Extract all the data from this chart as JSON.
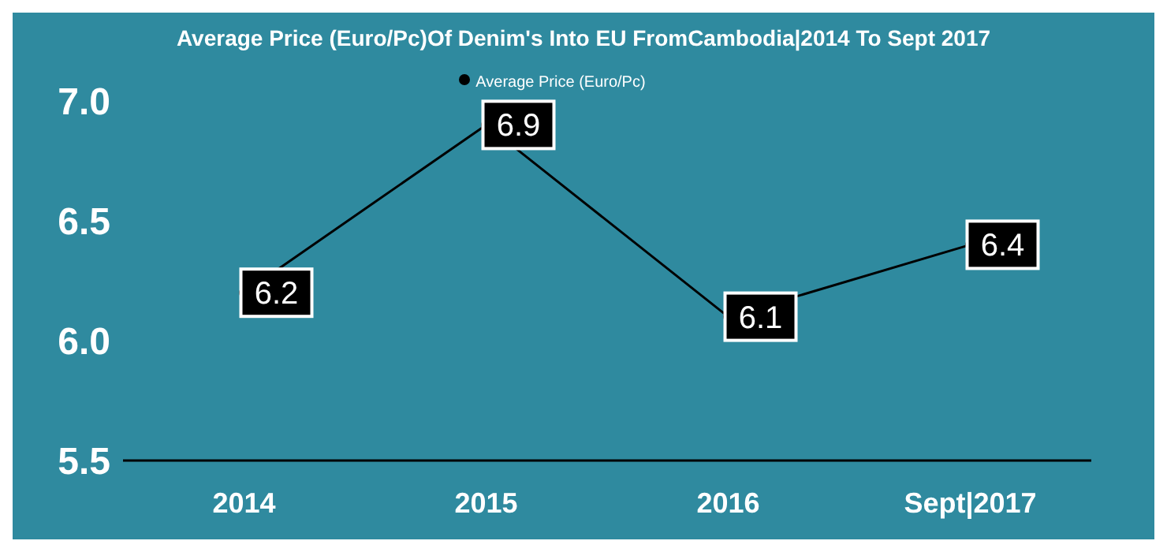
{
  "chart_data": {
    "type": "line",
    "title": "Average Price (Euro/Pc)Of Denim's Into EU FromCambodia|2014 To Sept 2017",
    "categories": [
      "2014",
      "2015",
      "2016",
      "Sept|2017"
    ],
    "series": [
      {
        "name": "Average Price (Euro/Pc)",
        "color": "#000000",
        "values": [
          6.2,
          6.9,
          6.1,
          6.4
        ]
      }
    ],
    "ylim": [
      5.5,
      7.0
    ],
    "yticks": [
      {
        "value": 5.5,
        "label": "5.5"
      },
      {
        "value": 6.0,
        "label": "6.0"
      },
      {
        "value": 6.5,
        "label": "6.5"
      },
      {
        "value": 7.0,
        "label": "7.0"
      }
    ],
    "grid": false,
    "legend": "top",
    "marker": "circle",
    "data_labels": true
  }
}
